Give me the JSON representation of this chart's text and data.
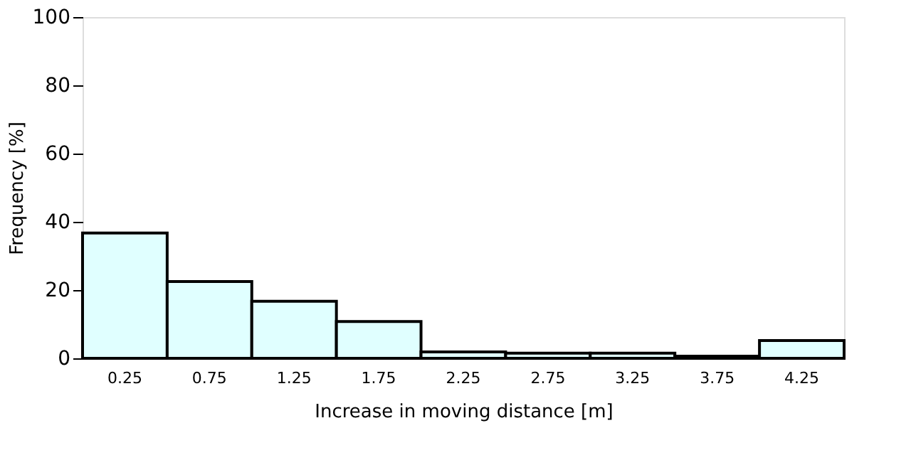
{
  "chart_data": {
    "type": "bar",
    "xlabel": "Increase in moving distance [m]",
    "ylabel": "Frequency [%]",
    "categories": [
      "0.25",
      "0.75",
      "1.25",
      "1.75",
      "2.25",
      "2.75",
      "3.25",
      "3.75",
      "4.25"
    ],
    "values": [
      36.7,
      22.5,
      16.7,
      10.8,
      1.9,
      1.5,
      1.5,
      0.6,
      5.2
    ],
    "color": "#e0ffff",
    "ylim": [
      0,
      100
    ],
    "yticks": [
      0,
      20,
      40,
      60,
      80,
      100
    ],
    "grid": false
  }
}
